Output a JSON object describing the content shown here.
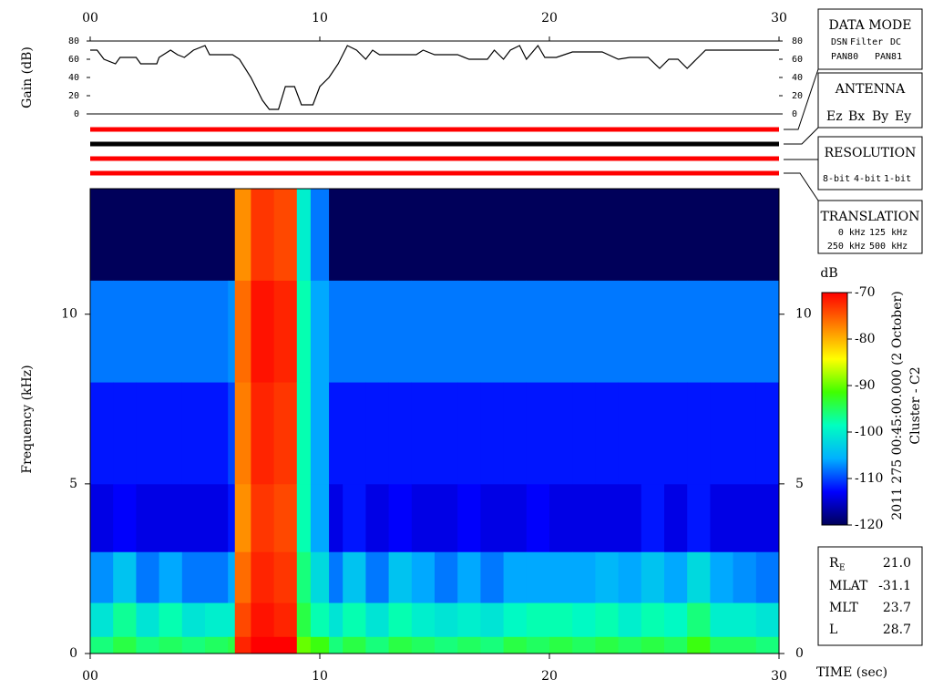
{
  "chart_data": [
    {
      "type": "line",
      "ylabel": "Gain (dB)",
      "color": "#000000",
      "x": [
        0,
        0.3,
        0.6,
        1.1,
        1.3,
        2.0,
        2.2,
        2.9,
        3.0,
        3.5,
        3.8,
        4.1,
        4.5,
        5.0,
        5.2,
        6.2,
        6.5,
        7.0,
        7.5,
        7.8,
        8.2,
        8.5,
        8.9,
        9.2,
        9.7,
        10.0,
        10.4,
        10.8,
        11.2,
        11.6,
        12.0,
        12.3,
        12.6,
        13.2,
        14.2,
        14.5,
        15.0,
        15.5,
        16.0,
        16.5,
        17.3,
        17.6,
        18.0,
        18.3,
        18.7,
        19.0,
        19.5,
        19.8,
        20.3,
        21.0,
        22.3,
        23.0,
        23.5,
        24.3,
        24.8,
        25.2,
        25.6,
        26.0,
        26.4,
        26.8,
        27.3,
        30
      ],
      "values": [
        70,
        70,
        60,
        55,
        62,
        62,
        55,
        55,
        62,
        70,
        65,
        62,
        70,
        75,
        65,
        65,
        60,
        40,
        15,
        5,
        5,
        30,
        30,
        10,
        10,
        30,
        40,
        55,
        75,
        70,
        60,
        70,
        65,
        65,
        65,
        70,
        65,
        65,
        65,
        60,
        60,
        70,
        60,
        70,
        75,
        60,
        75,
        62,
        62,
        68,
        68,
        60,
        62,
        62,
        50,
        60,
        60,
        50,
        60,
        70,
        70,
        70
      ],
      "xlim": [
        0,
        30
      ],
      "xticks": [
        {
          "value": 0,
          "label": "00"
        },
        10,
        20,
        30
      ],
      "ylim": [
        0,
        80
      ],
      "yticks": [
        0,
        20,
        40,
        60,
        80
      ]
    },
    {
      "type": "status",
      "colors": [
        "#ff0000",
        "#000000",
        "#ff0000",
        "#ff0000"
      ]
    },
    {
      "type": "heatmap",
      "ylabel": "Frequency (kHz)",
      "xlabel": "TIME (sec)",
      "xlim": [
        0,
        30
      ],
      "xticks": [
        {
          "value": 0,
          "label": "00"
        },
        10,
        20,
        30
      ],
      "ylim": [
        0,
        13.7
      ],
      "yticks": [
        0,
        5,
        10
      ],
      "x_edges": [
        0,
        1,
        2,
        3,
        4,
        5,
        6,
        6.3,
        7,
        8,
        9,
        9.6,
        10.4,
        11,
        12,
        13,
        14,
        15,
        16,
        17,
        18,
        19,
        20,
        21,
        22,
        23,
        24,
        25,
        26,
        27,
        28,
        29,
        30
      ],
      "y_edges": [
        0,
        0.5,
        1.5,
        3,
        5,
        8,
        11,
        13.7
      ],
      "values": [
        [
          -96,
          -101,
          -107,
          -114,
          -112,
          -108,
          -120
        ],
        [
          -94,
          -97,
          -104,
          -113,
          -112,
          -108,
          -120
        ],
        [
          -96,
          -101,
          -108,
          -114,
          -112,
          -108,
          -120
        ],
        [
          -95,
          -98,
          -106,
          -114,
          -112,
          -108,
          -120
        ],
        [
          -96,
          -101,
          -108,
          -114,
          -112,
          -108,
          -120
        ],
        [
          -95,
          -100,
          -108,
          -114,
          -112,
          -108,
          -120
        ],
        [
          -94,
          -100,
          -106,
          -112,
          -110,
          -107,
          -120
        ],
        [
          -72,
          -74,
          -76,
          -78,
          -77,
          -76,
          -78
        ],
        [
          -70,
          -71,
          -72,
          -73,
          -72,
          -71,
          -73
        ],
        [
          -70,
          -72,
          -73,
          -74,
          -73,
          -72,
          -74
        ],
        [
          -90,
          -94,
          -96,
          -98,
          -98,
          -98,
          -100
        ],
        [
          -92,
          -98,
          -102,
          -106,
          -106,
          -106,
          -108
        ],
        [
          -96,
          -101,
          -108,
          -114,
          -112,
          -108,
          -120
        ],
        [
          -94,
          -98,
          -104,
          -112,
          -112,
          -108,
          -120
        ],
        [
          -96,
          -101,
          -108,
          -114,
          -112,
          -108,
          -120
        ],
        [
          -94,
          -98,
          -104,
          -113,
          -112,
          -108,
          -120
        ],
        [
          -95,
          -100,
          -106,
          -114,
          -112,
          -108,
          -120
        ],
        [
          -96,
          -101,
          -108,
          -114,
          -112,
          -108,
          -120
        ],
        [
          -95,
          -100,
          -106,
          -113,
          -112,
          -108,
          -120
        ],
        [
          -96,
          -101,
          -108,
          -114,
          -112,
          -108,
          -120
        ],
        [
          -94,
          -99,
          -106,
          -114,
          -112,
          -108,
          -120
        ],
        [
          -95,
          -98,
          -106,
          -113,
          -112,
          -108,
          -120
        ],
        [
          -94,
          -98,
          -106,
          -114,
          -112,
          -108,
          -120
        ],
        [
          -95,
          -99,
          -106,
          -114,
          -112,
          -108,
          -120
        ],
        [
          -94,
          -98,
          -105,
          -114,
          -112,
          -108,
          -120
        ],
        [
          -95,
          -100,
          -106,
          -114,
          -112,
          -108,
          -120
        ],
        [
          -94,
          -98,
          -104,
          -112,
          -112,
          -108,
          -120
        ],
        [
          -95,
          -99,
          -106,
          -114,
          -112,
          -108,
          -120
        ],
        [
          -92,
          -96,
          -102,
          -112,
          -112,
          -108,
          -120
        ],
        [
          -95,
          -100,
          -106,
          -114,
          -112,
          -108,
          -120
        ],
        [
          -95,
          -100,
          -107,
          -114,
          -112,
          -108,
          -120
        ],
        [
          -96,
          -101,
          -108,
          -114,
          -112,
          -108,
          -120
        ]
      ],
      "colorbar": {
        "label": "dB",
        "lim": [
          -120,
          -70
        ],
        "ticks": [
          -120,
          -110,
          -100,
          -90,
          -80,
          -70
        ],
        "colormap": [
          "#00005a",
          "#0000ff",
          "#00b0ff",
          "#00ffc0",
          "#40ff00",
          "#ffff00",
          "#ff8000",
          "#ff0000"
        ]
      }
    }
  ],
  "side_title": [
    "2011 275 00:45:00.000 (2 October)",
    "Cluster - C2"
  ],
  "data_mode": {
    "title": "DATA MODE",
    "items": [
      {
        "text": "DSN",
        "color": "#ff0000"
      },
      {
        "text": "Filter",
        "color": "#00cc00"
      },
      {
        "text": "DC",
        "color": "#0000ff"
      },
      {
        "text": "PAN80",
        "color": "#000000"
      },
      {
        "text": "PAN81",
        "color": "#00cccc"
      }
    ]
  },
  "antenna": {
    "title": "ANTENNA",
    "items": [
      {
        "text": "Ez",
        "color": "#ff0000"
      },
      {
        "text": "Bx",
        "color": "#00cc00"
      },
      {
        "text": "By",
        "color": "#0000ff"
      },
      {
        "text": "Ey",
        "color": "#000000"
      }
    ]
  },
  "resolution": {
    "title": "RESOLUTION",
    "items": [
      {
        "text": "8-bit",
        "color": "#ff0000"
      },
      {
        "text": "4-bit",
        "color": "#00cc00"
      },
      {
        "text": "1-bit",
        "color": "#0000ff"
      }
    ]
  },
  "translation": {
    "title": "TRANSLATION",
    "items": [
      {
        "text": "0 kHz",
        "color": "#ff0000"
      },
      {
        "text": "125 kHz",
        "color": "#00cc00"
      },
      {
        "text": "250 kHz",
        "color": "#0000ff"
      },
      {
        "text": "500 kHz",
        "color": "#000000"
      }
    ]
  },
  "orbit": [
    {
      "label": "R",
      "sub": "E",
      "value": "21.0"
    },
    {
      "label": "MLAT",
      "value": "-31.1"
    },
    {
      "label": "MLT",
      "value": "23.7"
    },
    {
      "label": "L",
      "value": "28.7"
    }
  ]
}
